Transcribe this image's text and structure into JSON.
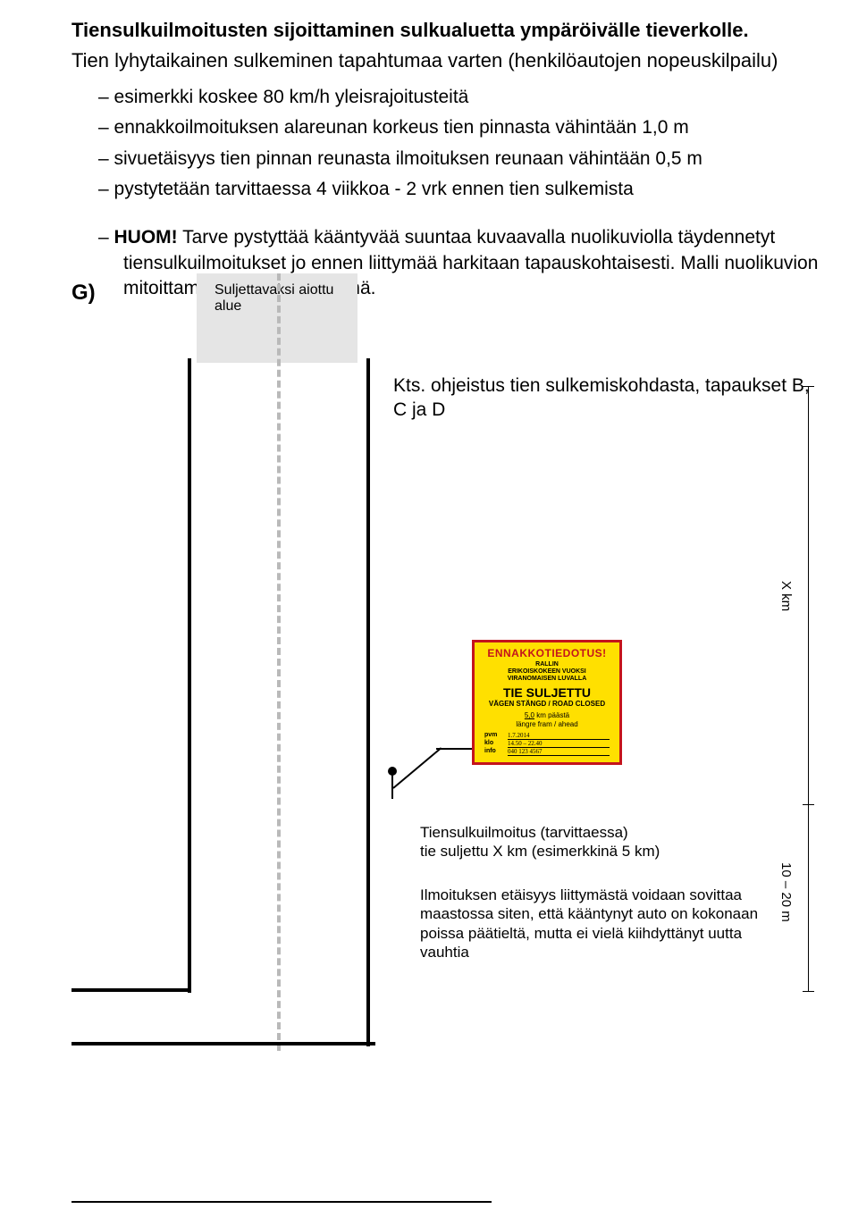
{
  "title": "Tiensulkuilmoitusten sijoittaminen sulkualuetta ympäröivälle tieverkolle.",
  "subtitle": "Tien lyhytaikainen sulkeminen tapahtumaa varten (henkilöautojen nopeuskilpailu)",
  "bullets": [
    "esimerkki koskee 80 km/h yleisrajoitusteitä",
    "ennakkoilmoituksen alareunan korkeus tien pinnasta vähintään 1,0 m",
    "sivuetäisyys tien pinnan reunasta ilmoituksen reunaan vähintään 0,5 m",
    "pystytetään tarvittaessa 4 viikkoa - 2 vrk ennen tien sulkemista"
  ],
  "g_label": "G)",
  "closed_area_label": "Suljettavaksi aiottu alue",
  "kts_note": "Kts. ohjeistus tien sulkemiskohdasta, tapaukset B, C ja D",
  "sign": {
    "line1": "ENNAKKOTIEDOTUS!",
    "line2": "RALLIN\nERIKOISKOKEEN VUOKSI\nVIRANOMAISEN LUVALLA",
    "line3": "TIE SULJETTU",
    "line4": "VÄGEN STÄNGD / ROAD CLOSED",
    "dist_val": "5,0",
    "dist_unit": "km päästä",
    "dist_sub": "längre fram / ahead",
    "rows": [
      {
        "k": "pvm",
        "v": "1.7.2014"
      },
      {
        "k": "klo",
        "v": "14.50 – 22.40"
      },
      {
        "k": "info",
        "v": "040 123 4567"
      }
    ],
    "colors": {
      "bg": "#ffe000",
      "border": "#c4141c",
      "accent": "#c4141c"
    }
  },
  "caption1": "Tiensulkuilmoitus (tarvittaessa)\ntie suljettu X km (esimerkkinä 5 km)",
  "caption2": "Ilmoituksen etäisyys liittymästä voidaan sovittaa maastossa siten, että kääntynyt auto on kokonaan poissa päätieltä, mutta ei vielä kiihdyttänyt uutta vauhtia",
  "measure_xkm": "X km",
  "measure_1020": "10 – 20 m",
  "note_lead": "HUOM!",
  "note_body": " Tarve pystyttää kääntyvää suuntaa kuvaavalla nuolikuviolla täydennetyt tiensulkuilmoitukset jo ennen liittymää harkitaan tapauskohtaisesti. Malli nuolikuvion mitoittamisesta on jäljempänä.",
  "colors": {
    "road_fill": "#e5e5e5",
    "dash": "#b9b9b9",
    "line": "#000000",
    "page_bg": "#ffffff"
  }
}
